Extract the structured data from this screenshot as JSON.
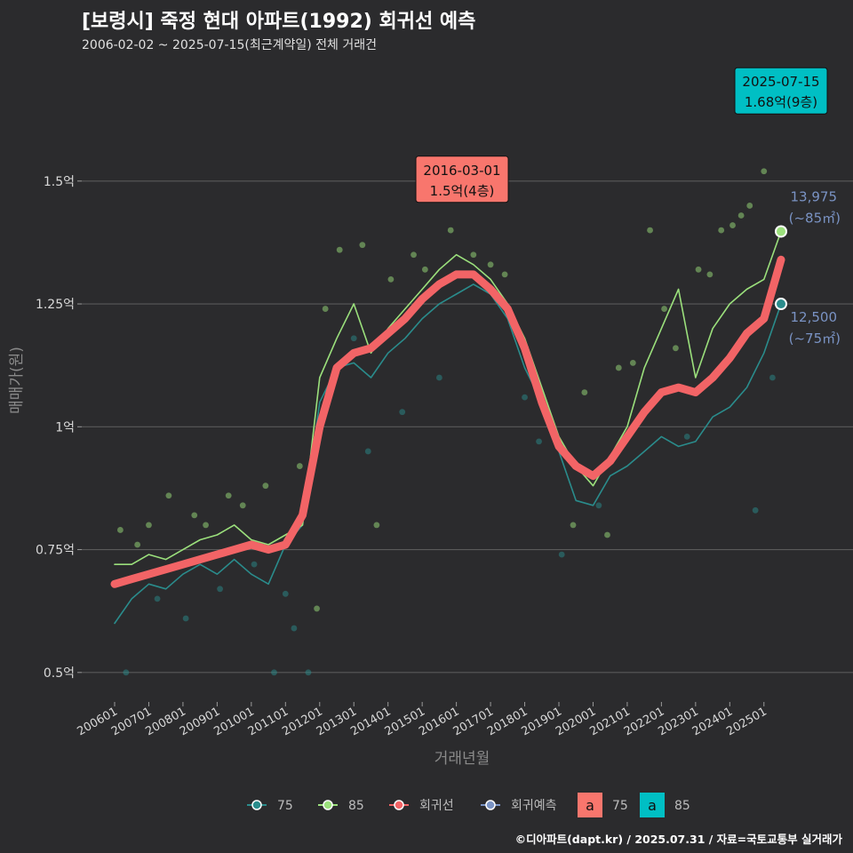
{
  "header": {
    "title": "[보령시] 죽정 현대 아파트(1992) 회귀선 예측",
    "subtitle": "2006-02-02 ~ 2025-07-15(최근계약일) 전체 거래건"
  },
  "caption": "©디아파트(dapt.kr) / 2025.07.31 / 자료=국토교통부 실거래가",
  "colors": {
    "background": "#2b2b2d",
    "grid": "#5a5a5a",
    "s75": "#2a8c8c",
    "s85": "#9be07c",
    "regression": "#f26466",
    "forecast": "#7a93c4",
    "label75_bg": "#f8766d",
    "label85_bg": "#00bfc4"
  },
  "chart_data": {
    "type": "line",
    "xlabel": "거래년월",
    "ylabel": "매매가(원)",
    "y_unit": "억",
    "ylim": [
      0.44,
      1.76
    ],
    "x_start": "2006-01",
    "x_end": "2025-07",
    "x_ticks": [
      "200601",
      "200701",
      "200801",
      "200901",
      "201001",
      "201101",
      "201201",
      "201301",
      "201401",
      "201501",
      "201601",
      "201701",
      "201801",
      "201901",
      "202001",
      "202101",
      "202201",
      "202301",
      "202401",
      "202501"
    ],
    "y_ticks": [
      {
        "value": 0.5,
        "label": "0.5억"
      },
      {
        "value": 0.75,
        "label": "0.75억"
      },
      {
        "value": 1.0,
        "label": "1억"
      },
      {
        "value": 1.25,
        "label": "1.25억"
      },
      {
        "value": 1.5,
        "label": "1.5억"
      }
    ],
    "series": [
      {
        "name": "75",
        "key": "s75",
        "points": [
          [
            "2006-01",
            0.6
          ],
          [
            "2006-07",
            0.65
          ],
          [
            "2007-01",
            0.68
          ],
          [
            "2007-07",
            0.67
          ],
          [
            "2008-01",
            0.7
          ],
          [
            "2008-07",
            0.72
          ],
          [
            "2009-01",
            0.7
          ],
          [
            "2009-07",
            0.73
          ],
          [
            "2010-01",
            0.7
          ],
          [
            "2010-07",
            0.68
          ],
          [
            "2011-01",
            0.76
          ],
          [
            "2011-07",
            0.8
          ],
          [
            "2012-01",
            1.05
          ],
          [
            "2012-07",
            1.12
          ],
          [
            "2013-01",
            1.13
          ],
          [
            "2013-07",
            1.1
          ],
          [
            "2014-01",
            1.15
          ],
          [
            "2014-07",
            1.18
          ],
          [
            "2015-01",
            1.22
          ],
          [
            "2015-07",
            1.25
          ],
          [
            "2016-01",
            1.27
          ],
          [
            "2016-07",
            1.29
          ],
          [
            "2017-01",
            1.27
          ],
          [
            "2017-07",
            1.22
          ],
          [
            "2018-01",
            1.12
          ],
          [
            "2018-07",
            1.05
          ],
          [
            "2019-01",
            0.95
          ],
          [
            "2019-07",
            0.85
          ],
          [
            "2020-01",
            0.84
          ],
          [
            "2020-07",
            0.9
          ],
          [
            "2021-01",
            0.92
          ],
          [
            "2021-07",
            0.95
          ],
          [
            "2022-01",
            0.98
          ],
          [
            "2022-07",
            0.96
          ],
          [
            "2023-01",
            0.97
          ],
          [
            "2023-07",
            1.02
          ],
          [
            "2024-01",
            1.04
          ],
          [
            "2024-07",
            1.08
          ],
          [
            "2025-01",
            1.15
          ],
          [
            "2025-07",
            1.25
          ]
        ]
      },
      {
        "name": "85",
        "key": "s85",
        "points": [
          [
            "2006-01",
            0.72
          ],
          [
            "2006-07",
            0.72
          ],
          [
            "2007-01",
            0.74
          ],
          [
            "2007-07",
            0.73
          ],
          [
            "2008-01",
            0.75
          ],
          [
            "2008-07",
            0.77
          ],
          [
            "2009-01",
            0.78
          ],
          [
            "2009-07",
            0.8
          ],
          [
            "2010-01",
            0.77
          ],
          [
            "2010-07",
            0.76
          ],
          [
            "2011-01",
            0.78
          ],
          [
            "2011-07",
            0.8
          ],
          [
            "2012-01",
            1.1
          ],
          [
            "2012-07",
            1.18
          ],
          [
            "2013-01",
            1.25
          ],
          [
            "2013-07",
            1.15
          ],
          [
            "2014-01",
            1.2
          ],
          [
            "2014-07",
            1.24
          ],
          [
            "2015-01",
            1.28
          ],
          [
            "2015-07",
            1.32
          ],
          [
            "2016-01",
            1.35
          ],
          [
            "2016-07",
            1.33
          ],
          [
            "2017-01",
            1.3
          ],
          [
            "2017-07",
            1.25
          ],
          [
            "2018-01",
            1.18
          ],
          [
            "2018-07",
            1.08
          ],
          [
            "2019-01",
            0.98
          ],
          [
            "2019-07",
            0.92
          ],
          [
            "2020-01",
            0.88
          ],
          [
            "2020-07",
            0.94
          ],
          [
            "2021-01",
            1.0
          ],
          [
            "2021-07",
            1.12
          ],
          [
            "2022-01",
            1.2
          ],
          [
            "2022-07",
            1.28
          ],
          [
            "2023-01",
            1.1
          ],
          [
            "2023-07",
            1.2
          ],
          [
            "2024-01",
            1.25
          ],
          [
            "2024-07",
            1.28
          ],
          [
            "2025-01",
            1.3
          ],
          [
            "2025-07",
            1.3975
          ]
        ]
      },
      {
        "name": "회귀선",
        "key": "regression",
        "points": [
          [
            "2006-01",
            0.68
          ],
          [
            "2006-07",
            0.69
          ],
          [
            "2007-01",
            0.7
          ],
          [
            "2007-07",
            0.71
          ],
          [
            "2008-01",
            0.72
          ],
          [
            "2008-07",
            0.73
          ],
          [
            "2009-01",
            0.74
          ],
          [
            "2009-07",
            0.75
          ],
          [
            "2010-01",
            0.76
          ],
          [
            "2010-07",
            0.75
          ],
          [
            "2011-01",
            0.76
          ],
          [
            "2011-07",
            0.82
          ],
          [
            "2012-01",
            1.0
          ],
          [
            "2012-07",
            1.12
          ],
          [
            "2013-01",
            1.15
          ],
          [
            "2013-07",
            1.16
          ],
          [
            "2014-01",
            1.19
          ],
          [
            "2014-07",
            1.22
          ],
          [
            "2015-01",
            1.26
          ],
          [
            "2015-07",
            1.29
          ],
          [
            "2016-01",
            1.31
          ],
          [
            "2016-07",
            1.31
          ],
          [
            "2017-01",
            1.28
          ],
          [
            "2017-07",
            1.24
          ],
          [
            "2018-01",
            1.16
          ],
          [
            "2018-07",
            1.05
          ],
          [
            "2019-01",
            0.96
          ],
          [
            "2019-07",
            0.92
          ],
          [
            "2020-01",
            0.9
          ],
          [
            "2020-07",
            0.93
          ],
          [
            "2021-01",
            0.98
          ],
          [
            "2021-07",
            1.03
          ],
          [
            "2022-01",
            1.07
          ],
          [
            "2022-07",
            1.08
          ],
          [
            "2023-01",
            1.07
          ],
          [
            "2023-07",
            1.1
          ],
          [
            "2024-01",
            1.14
          ],
          [
            "2024-07",
            1.19
          ],
          [
            "2025-01",
            1.22
          ],
          [
            "2025-07",
            1.34
          ]
        ]
      },
      {
        "name": "회귀예측",
        "key": "forecast",
        "points": []
      }
    ],
    "scatter": [
      {
        "x": "2006-03",
        "y": 0.79,
        "s": "85"
      },
      {
        "x": "2006-05",
        "y": 0.5,
        "s": "75"
      },
      {
        "x": "2006-09",
        "y": 0.76,
        "s": "85"
      },
      {
        "x": "2007-01",
        "y": 0.8,
        "s": "85"
      },
      {
        "x": "2007-04",
        "y": 0.65,
        "s": "75"
      },
      {
        "x": "2007-08",
        "y": 0.86,
        "s": "85"
      },
      {
        "x": "2008-02",
        "y": 0.61,
        "s": "75"
      },
      {
        "x": "2008-05",
        "y": 0.82,
        "s": "85"
      },
      {
        "x": "2008-09",
        "y": 0.8,
        "s": "85"
      },
      {
        "x": "2009-02",
        "y": 0.67,
        "s": "75"
      },
      {
        "x": "2009-05",
        "y": 0.86,
        "s": "85"
      },
      {
        "x": "2009-10",
        "y": 0.84,
        "s": "85"
      },
      {
        "x": "2010-02",
        "y": 0.72,
        "s": "75"
      },
      {
        "x": "2010-06",
        "y": 0.88,
        "s": "85"
      },
      {
        "x": "2010-09",
        "y": 0.5,
        "s": "75"
      },
      {
        "x": "2011-01",
        "y": 0.66,
        "s": "75"
      },
      {
        "x": "2011-04",
        "y": 0.59,
        "s": "75"
      },
      {
        "x": "2011-06",
        "y": 0.92,
        "s": "85"
      },
      {
        "x": "2011-09",
        "y": 0.5,
        "s": "75"
      },
      {
        "x": "2011-12",
        "y": 0.63,
        "s": "85"
      },
      {
        "x": "2012-03",
        "y": 1.24,
        "s": "85"
      },
      {
        "x": "2012-08",
        "y": 1.36,
        "s": "85"
      },
      {
        "x": "2013-01",
        "y": 1.18,
        "s": "75"
      },
      {
        "x": "2013-04",
        "y": 1.37,
        "s": "85"
      },
      {
        "x": "2013-06",
        "y": 0.95,
        "s": "75"
      },
      {
        "x": "2013-09",
        "y": 0.8,
        "s": "85"
      },
      {
        "x": "2014-02",
        "y": 1.3,
        "s": "85"
      },
      {
        "x": "2014-06",
        "y": 1.03,
        "s": "75"
      },
      {
        "x": "2014-10",
        "y": 1.35,
        "s": "85"
      },
      {
        "x": "2015-02",
        "y": 1.32,
        "s": "85"
      },
      {
        "x": "2015-07",
        "y": 1.1,
        "s": "75"
      },
      {
        "x": "2015-11",
        "y": 1.4,
        "s": "85"
      },
      {
        "x": "2016-03",
        "y": 1.5,
        "s": "75"
      },
      {
        "x": "2016-07",
        "y": 1.35,
        "s": "85"
      },
      {
        "x": "2017-01",
        "y": 1.33,
        "s": "85"
      },
      {
        "x": "2017-06",
        "y": 1.31,
        "s": "85"
      },
      {
        "x": "2018-01",
        "y": 1.06,
        "s": "75"
      },
      {
        "x": "2018-06",
        "y": 0.97,
        "s": "75"
      },
      {
        "x": "2019-02",
        "y": 0.74,
        "s": "75"
      },
      {
        "x": "2019-06",
        "y": 0.8,
        "s": "85"
      },
      {
        "x": "2019-10",
        "y": 1.07,
        "s": "85"
      },
      {
        "x": "2020-03",
        "y": 0.84,
        "s": "75"
      },
      {
        "x": "2020-06",
        "y": 0.78,
        "s": "85"
      },
      {
        "x": "2020-10",
        "y": 1.12,
        "s": "85"
      },
      {
        "x": "2021-03",
        "y": 1.13,
        "s": "85"
      },
      {
        "x": "2021-09",
        "y": 1.4,
        "s": "85"
      },
      {
        "x": "2022-02",
        "y": 1.24,
        "s": "85"
      },
      {
        "x": "2022-06",
        "y": 1.16,
        "s": "85"
      },
      {
        "x": "2022-10",
        "y": 0.98,
        "s": "75"
      },
      {
        "x": "2023-02",
        "y": 1.32,
        "s": "85"
      },
      {
        "x": "2023-06",
        "y": 1.31,
        "s": "85"
      },
      {
        "x": "2023-10",
        "y": 1.4,
        "s": "85"
      },
      {
        "x": "2024-02",
        "y": 1.41,
        "s": "85"
      },
      {
        "x": "2024-05",
        "y": 1.43,
        "s": "85"
      },
      {
        "x": "2024-08",
        "y": 1.45,
        "s": "85"
      },
      {
        "x": "2024-10",
        "y": 0.83,
        "s": "75"
      },
      {
        "x": "2025-01",
        "y": 1.52,
        "s": "85"
      },
      {
        "x": "2025-04",
        "y": 1.1,
        "s": "75"
      },
      {
        "x": "2025-07",
        "y": 1.68,
        "s": "85"
      }
    ],
    "end_labels": [
      {
        "key": "s85",
        "x": "2025-07",
        "y": 1.3975,
        "value": "13,975",
        "area": "(~85㎡)"
      },
      {
        "key": "s75",
        "x": "2025-07",
        "y": 1.25,
        "value": "12,500",
        "area": "(~75㎡)"
      }
    ],
    "callouts": [
      {
        "key": "label75_bg",
        "date": "2016-03-01",
        "price": "1.5억(4층)",
        "x": "2016-03",
        "y": 1.5
      },
      {
        "key": "label85_bg",
        "date": "2025-07-15",
        "price": "1.68억(9층)",
        "x": "2025-07",
        "y": 1.68
      }
    ],
    "legend": {
      "placement": "bottom",
      "line_items": [
        {
          "label": "75",
          "key": "s75"
        },
        {
          "label": "85",
          "key": "s85"
        },
        {
          "label": "회귀선",
          "key": "regression"
        },
        {
          "label": "회귀예측",
          "key": "forecast"
        }
      ],
      "label_items": [
        {
          "glyph": "a",
          "label": "75",
          "key": "label75_bg"
        },
        {
          "glyph": "a",
          "label": "85",
          "key": "label85_bg"
        }
      ]
    }
  }
}
